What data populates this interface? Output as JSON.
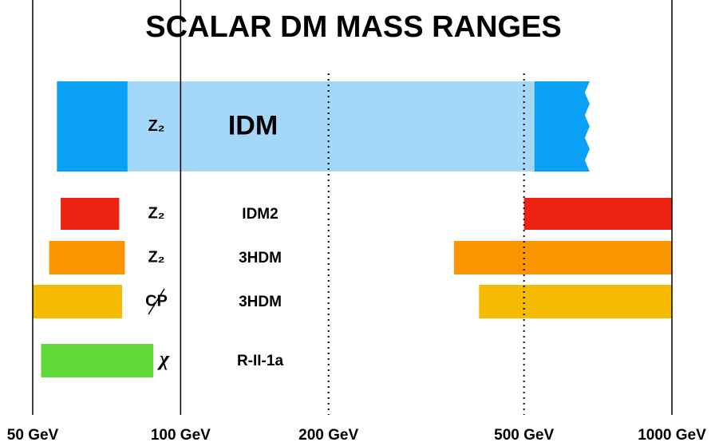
{
  "chart_data": {
    "type": "range",
    "title": "SCALAR DM MASS RANGES",
    "log_x": true,
    "xlim": [
      50,
      1000
    ],
    "xticks": [
      {
        "value": 50,
        "label": "50 GeV",
        "line": "solid"
      },
      {
        "value": 100,
        "label": "100 GeV",
        "line": "solid"
      },
      {
        "value": 200,
        "label": "200 GeV",
        "line": "dotted"
      },
      {
        "value": 500,
        "label": "500 GeV",
        "line": "dotted"
      },
      {
        "value": 1000,
        "label": "1000 GeV",
        "line": "solid"
      }
    ],
    "rows": [
      {
        "symmetry": "Z₂",
        "model": "IDM",
        "ranges": [
          {
            "lo": 56,
            "hi": 78,
            "color": "#0aa0f5"
          },
          {
            "lo": 78,
            "hi": 525,
            "color": "#a5d8f8"
          },
          {
            "lo": 525,
            "hi": 680,
            "color": "#0aa0f5",
            "jagged": true
          }
        ]
      },
      {
        "symmetry": "Z₂",
        "model": "IDM2",
        "ranges": [
          {
            "lo": 57,
            "hi": 75,
            "color": "#ee2211"
          },
          {
            "lo": 500,
            "hi": 1000,
            "color": "#ee2211"
          }
        ]
      },
      {
        "symmetry": "Z₂",
        "model": "3HDM",
        "ranges": [
          {
            "lo": 54,
            "hi": 77,
            "color": "#fb9500"
          },
          {
            "lo": 360,
            "hi": 1000,
            "color": "#fb9500"
          }
        ]
      },
      {
        "symmetry": "CP",
        "struck": true,
        "model": "3HDM",
        "ranges": [
          {
            "lo": 50,
            "hi": 76,
            "color": "#f5bb00"
          },
          {
            "lo": 405,
            "hi": 1000,
            "color": "#f5bb00"
          }
        ]
      },
      {
        "symmetry": "χ",
        "model": "R-II-1a",
        "ranges": [
          {
            "lo": 52,
            "hi": 88,
            "color": "#63d93a"
          }
        ]
      }
    ]
  }
}
